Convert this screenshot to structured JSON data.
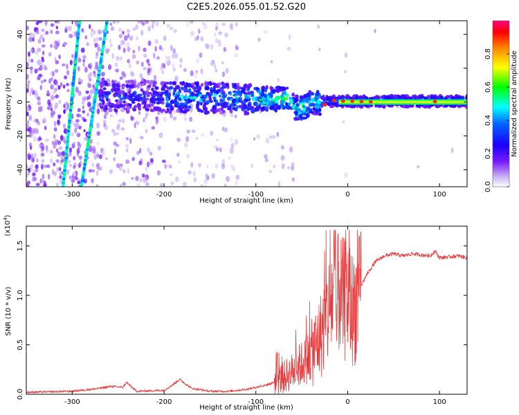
{
  "title": "C2E5.2026.055.01.52.G20",
  "chart_data": [
    {
      "type": "heatmap",
      "xlabel": "Height of straight line (km)",
      "ylabel": "Frequency (Hz)",
      "xlim": [
        -350,
        130
      ],
      "ylim": [
        -50,
        48
      ],
      "xticks": [
        -300,
        -200,
        -100,
        0,
        100
      ],
      "yticks": [
        -40,
        -20,
        0,
        20,
        40
      ],
      "grid": false,
      "colorbar": {
        "label": "Normalized spectral amplitude",
        "range": [
          0,
          1
        ],
        "ticks": [
          "0.0",
          "0.2",
          "0.4",
          "0.6",
          "0.8"
        ],
        "colors": [
          "#ffffff",
          "#b79cf2",
          "#6a00ff",
          "#0000ff",
          "#00ffff",
          "#00ff00",
          "#ffff00",
          "#ff8000",
          "#ff0000",
          "#ff0080"
        ]
      },
      "features": {
        "doppler_streak_1": {
          "x": [
            -310,
            -292
          ],
          "y": [
            -50,
            48
          ]
        },
        "doppler_streak_2": {
          "x": [
            -290,
            -262
          ],
          "y": [
            -50,
            48
          ]
        },
        "signal_band_center_hz": 0,
        "signal_band_start_km": -270
      }
    },
    {
      "type": "line",
      "xlabel": "Height of straight line (km)",
      "ylabel": "SNR (10 * v/v)",
      "multiplier": "(x10",
      "multiplier_exp": "4",
      "multiplier_close": ")",
      "xlim": [
        -350,
        130
      ],
      "ylim": [
        0,
        1.7
      ],
      "xticks": [
        -300,
        -200,
        -100,
        0,
        100
      ],
      "yticks": [
        "0.0",
        "0.5",
        "1.0",
        "1.5"
      ],
      "color": "#e83a3a",
      "series": [
        {
          "name": "SNR",
          "x": [
            -350,
            -300,
            -270,
            -258,
            -245,
            -241,
            -230,
            -200,
            -190,
            -183,
            -170,
            -150,
            -130,
            -110,
            -100,
            -90,
            -80,
            -70,
            -60,
            -50,
            -40,
            -30,
            -25,
            -20,
            -17,
            -14,
            -12,
            -10,
            -7,
            -4,
            0,
            5,
            10,
            15,
            20,
            30,
            40,
            50,
            60,
            70,
            80,
            90,
            95,
            100,
            110,
            120,
            130
          ],
          "values": [
            0.02,
            0.03,
            0.06,
            0.08,
            0.07,
            0.12,
            0.03,
            0.04,
            0.1,
            0.15,
            0.06,
            0.03,
            0.03,
            0.05,
            0.07,
            0.09,
            0.12,
            0.17,
            0.23,
            0.31,
            0.4,
            0.58,
            0.72,
            0.85,
            1.0,
            1.1,
            0.65,
            1.15,
            0.95,
            0.95,
            1.0,
            0.85,
            0.95,
            1.1,
            1.2,
            1.34,
            1.4,
            1.42,
            1.4,
            1.42,
            1.41,
            1.4,
            1.45,
            1.38,
            1.39,
            1.4,
            1.38
          ]
        }
      ]
    }
  ]
}
